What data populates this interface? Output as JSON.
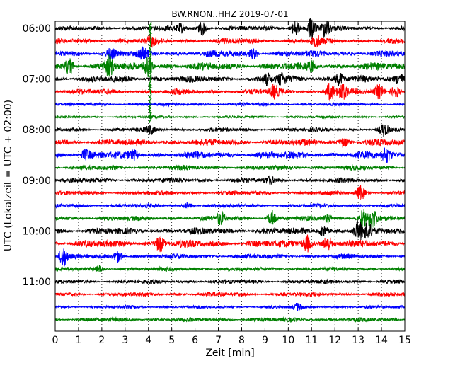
{
  "chart_data": {
    "type": "line",
    "title": "BW.RNON..HHZ 2019-07-01",
    "xlabel": "Zeit  [min]",
    "ylabel": "UTC (Lokalzeit = UTC + 02:00)",
    "xlim": [
      0,
      15
    ],
    "x_ticks": [
      "0",
      "1",
      "2",
      "3",
      "4",
      "5",
      "6",
      "7",
      "8",
      "9",
      "10",
      "11",
      "12",
      "13",
      "14",
      "15"
    ],
    "y_ticks": [
      {
        "label": "06:00",
        "trace": 0
      },
      {
        "label": "07:00",
        "trace": 4
      },
      {
        "label": "08:00",
        "trace": 8
      },
      {
        "label": "09:00",
        "trace": 12
      },
      {
        "label": "10:00",
        "trace": 16
      },
      {
        "label": "11:00",
        "trace": 20
      }
    ],
    "grid": "vertical-dotted",
    "series_colors": [
      "#000000",
      "#ff0000",
      "#0000ff",
      "#008000"
    ],
    "traces": [
      {
        "start": "06:00",
        "color": "#000000",
        "amp": 3.0,
        "events": [
          {
            "t": 5.4,
            "a": 6
          },
          {
            "t": 6.3,
            "a": 8
          },
          {
            "t": 10.3,
            "a": 10
          },
          {
            "t": 11.0,
            "a": 14
          },
          {
            "t": 11.6,
            "a": 12
          }
        ]
      },
      {
        "start": "06:15",
        "color": "#ff0000",
        "amp": 3.5,
        "events": [
          {
            "t": 4.1,
            "a": 6
          },
          {
            "t": 11.2,
            "a": 6
          }
        ]
      },
      {
        "start": "06:30",
        "color": "#0000ff",
        "amp": 4.0,
        "events": [
          {
            "t": 2.4,
            "a": 6
          },
          {
            "t": 3.8,
            "a": 7
          },
          {
            "t": 8.5,
            "a": 6
          }
        ]
      },
      {
        "start": "06:45",
        "color": "#008000",
        "amp": 4.5,
        "events": [
          {
            "t": 0.6,
            "a": 10
          },
          {
            "t": 2.3,
            "a": 14
          },
          {
            "t": 4.0,
            "a": 14
          },
          {
            "t": 11.0,
            "a": 6
          }
        ]
      },
      {
        "start": "07:00",
        "color": "#000000",
        "amp": 4.0,
        "events": [
          {
            "t": 9.1,
            "a": 6
          },
          {
            "t": 9.7,
            "a": 7
          },
          {
            "t": 12.2,
            "a": 8
          },
          {
            "t": 14.8,
            "a": 7
          }
        ]
      },
      {
        "start": "07:15",
        "color": "#ff0000",
        "amp": 3.5,
        "events": [
          {
            "t": 9.4,
            "a": 8
          },
          {
            "t": 11.8,
            "a": 12
          },
          {
            "t": 12.3,
            "a": 10
          },
          {
            "t": 13.9,
            "a": 9
          },
          {
            "t": 14.6,
            "a": 9
          }
        ]
      },
      {
        "start": "07:30",
        "color": "#0000ff",
        "amp": 2.0,
        "events": []
      },
      {
        "start": "07:45",
        "color": "#008000",
        "amp": 1.6,
        "events": []
      },
      {
        "start": "08:00",
        "color": "#000000",
        "amp": 2.5,
        "events": [
          {
            "t": 4.1,
            "a": 5
          },
          {
            "t": 14.1,
            "a": 8
          }
        ]
      },
      {
        "start": "08:15",
        "color": "#ff0000",
        "amp": 4.0,
        "events": [
          {
            "t": 12.4,
            "a": 5
          }
        ]
      },
      {
        "start": "08:30",
        "color": "#0000ff",
        "amp": 4.5,
        "events": [
          {
            "t": 1.3,
            "a": 6
          },
          {
            "t": 3.4,
            "a": 5
          },
          {
            "t": 14.2,
            "a": 9
          }
        ]
      },
      {
        "start": "08:45",
        "color": "#008000",
        "amp": 3.0,
        "events": []
      },
      {
        "start": "09:00",
        "color": "#000000",
        "amp": 3.0,
        "events": [
          {
            "t": 9.2,
            "a": 4
          }
        ]
      },
      {
        "start": "09:15",
        "color": "#ff0000",
        "amp": 2.5,
        "events": [
          {
            "t": 13.1,
            "a": 10
          }
        ]
      },
      {
        "start": "09:30",
        "color": "#0000ff",
        "amp": 2.5,
        "events": [
          {
            "t": 5.7,
            "a": 4
          }
        ]
      },
      {
        "start": "09:45",
        "color": "#008000",
        "amp": 3.0,
        "events": [
          {
            "t": 7.1,
            "a": 8
          },
          {
            "t": 9.3,
            "a": 10
          },
          {
            "t": 11.7,
            "a": 6
          },
          {
            "t": 13.2,
            "a": 12
          },
          {
            "t": 13.6,
            "a": 14
          }
        ]
      },
      {
        "start": "10:00",
        "color": "#000000",
        "amp": 4.0,
        "events": [
          {
            "t": 11.5,
            "a": 7
          },
          {
            "t": 13.0,
            "a": 12
          },
          {
            "t": 13.4,
            "a": 8
          }
        ]
      },
      {
        "start": "10:15",
        "color": "#ff0000",
        "amp": 4.5,
        "events": [
          {
            "t": 4.5,
            "a": 10
          },
          {
            "t": 10.8,
            "a": 12
          },
          {
            "t": 11.7,
            "a": 9
          }
        ]
      },
      {
        "start": "10:30",
        "color": "#0000ff",
        "amp": 3.0,
        "events": [
          {
            "t": 0.35,
            "a": 14
          },
          {
            "t": 2.7,
            "a": 8
          }
        ]
      },
      {
        "start": "10:45",
        "color": "#008000",
        "amp": 2.5,
        "events": [
          {
            "t": 1.9,
            "a": 4
          }
        ]
      },
      {
        "start": "11:00",
        "color": "#000000",
        "amp": 2.5,
        "events": []
      },
      {
        "start": "11:15",
        "color": "#ff0000",
        "amp": 2.5,
        "events": []
      },
      {
        "start": "11:30",
        "color": "#0000ff",
        "amp": 2.0,
        "events": [
          {
            "t": 10.4,
            "a": 4
          }
        ]
      },
      {
        "start": "11:45",
        "color": "#008000",
        "amp": 2.5,
        "events": []
      }
    ],
    "spike": {
      "color": "#008000",
      "t": 4.08,
      "from_trace": -0.5,
      "to_trace": 7.5
    }
  }
}
